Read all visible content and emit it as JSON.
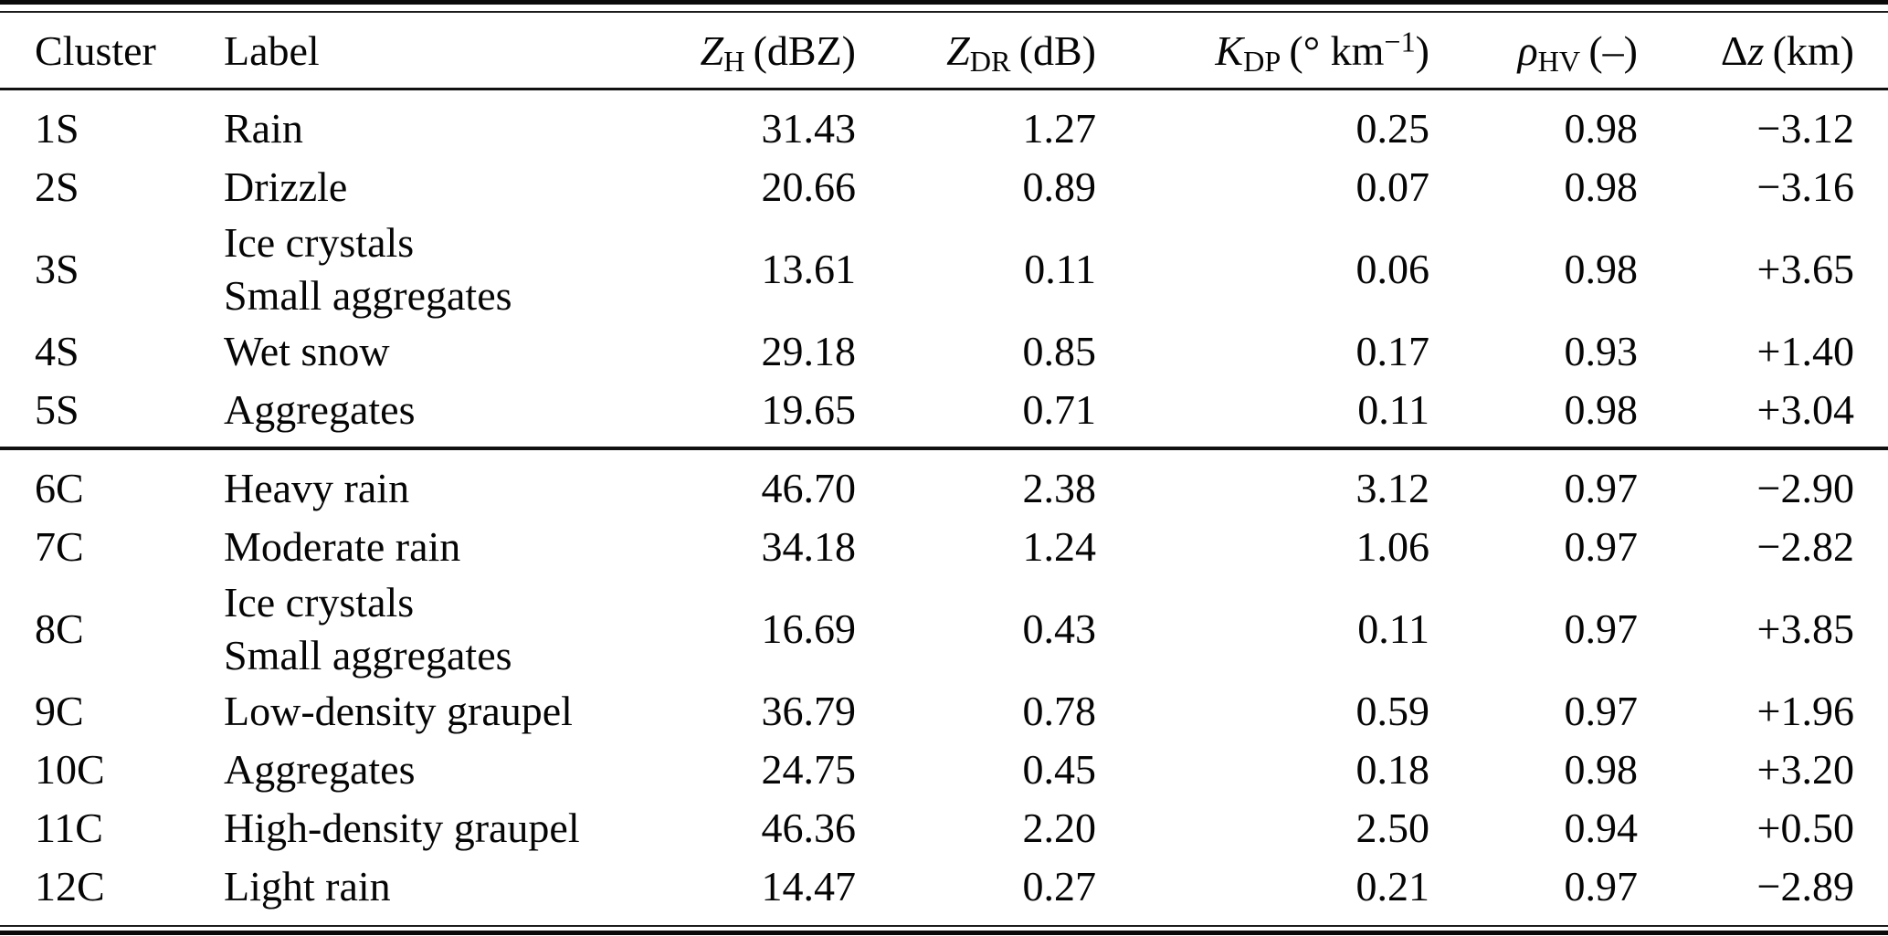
{
  "chart_data": {
    "type": "table",
    "columns": [
      "Cluster",
      "Label",
      "Z_H (dBZ)",
      "Z_DR (dB)",
      "K_DP (° km−1)",
      "ρ_HV (–)",
      "Δz (km)"
    ],
    "header_parts": {
      "cluster": {
        "text": "Cluster"
      },
      "label": {
        "text": "Label"
      },
      "zh": {
        "sym": "Z",
        "sub": "H",
        "unit": "(dBZ)"
      },
      "zdr": {
        "sym": "Z",
        "sub": "DR",
        "unit": "(dB)"
      },
      "kdp": {
        "sym": "K",
        "sub": "DP",
        "unit": "(° km",
        "sup": "−1",
        "unit_post": ")"
      },
      "rhohv": {
        "sym": "ρ",
        "sub": "HV",
        "unit": "(–)"
      },
      "dz": {
        "pre": "Δ",
        "sym": "z",
        "unit": "(km)"
      }
    },
    "rows": [
      {
        "group": "S",
        "cluster": "1S",
        "label": [
          "Rain"
        ],
        "zh": "31.43",
        "zdr": "1.27",
        "kdp": "0.25",
        "rhohv": "0.98",
        "dz": "−3.12"
      },
      {
        "group": "S",
        "cluster": "2S",
        "label": [
          "Drizzle"
        ],
        "zh": "20.66",
        "zdr": "0.89",
        "kdp": "0.07",
        "rhohv": "0.98",
        "dz": "−3.16"
      },
      {
        "group": "S",
        "cluster": "3S",
        "label": [
          "Ice crystals",
          "Small aggregates"
        ],
        "zh": "13.61",
        "zdr": "0.11",
        "kdp": "0.06",
        "rhohv": "0.98",
        "dz": "+3.65"
      },
      {
        "group": "S",
        "cluster": "4S",
        "label": [
          "Wet snow"
        ],
        "zh": "29.18",
        "zdr": "0.85",
        "kdp": "0.17",
        "rhohv": "0.93",
        "dz": "+1.40"
      },
      {
        "group": "S",
        "cluster": "5S",
        "label": [
          "Aggregates"
        ],
        "zh": "19.65",
        "zdr": "0.71",
        "kdp": "0.11",
        "rhohv": "0.98",
        "dz": "+3.04"
      },
      {
        "group": "C",
        "cluster": "6C",
        "label": [
          "Heavy rain"
        ],
        "zh": "46.70",
        "zdr": "2.38",
        "kdp": "3.12",
        "rhohv": "0.97",
        "dz": "−2.90"
      },
      {
        "group": "C",
        "cluster": "7C",
        "label": [
          "Moderate rain"
        ],
        "zh": "34.18",
        "zdr": "1.24",
        "kdp": "1.06",
        "rhohv": "0.97",
        "dz": "−2.82"
      },
      {
        "group": "C",
        "cluster": "8C",
        "label": [
          "Ice crystals",
          "Small aggregates"
        ],
        "zh": "16.69",
        "zdr": "0.43",
        "kdp": "0.11",
        "rhohv": "0.97",
        "dz": "+3.85"
      },
      {
        "group": "C",
        "cluster": "9C",
        "label": [
          "Low-density graupel"
        ],
        "zh": "36.79",
        "zdr": "0.78",
        "kdp": "0.59",
        "rhohv": "0.97",
        "dz": "+1.96"
      },
      {
        "group": "C",
        "cluster": "10C",
        "label": [
          "Aggregates"
        ],
        "zh": "24.75",
        "zdr": "0.45",
        "kdp": "0.18",
        "rhohv": "0.98",
        "dz": "+3.20"
      },
      {
        "group": "C",
        "cluster": "11C",
        "label": [
          "High-density graupel"
        ],
        "zh": "46.36",
        "zdr": "2.20",
        "kdp": "2.50",
        "rhohv": "0.94",
        "dz": "+0.50"
      },
      {
        "group": "C",
        "cluster": "12C",
        "label": [
          "Light rain"
        ],
        "zh": "14.47",
        "zdr": "0.27",
        "kdp": "0.21",
        "rhohv": "0.97",
        "dz": "−2.89"
      }
    ],
    "colors": {
      "text": "#050505",
      "background": "#ffffff",
      "rule": "#111111"
    }
  }
}
